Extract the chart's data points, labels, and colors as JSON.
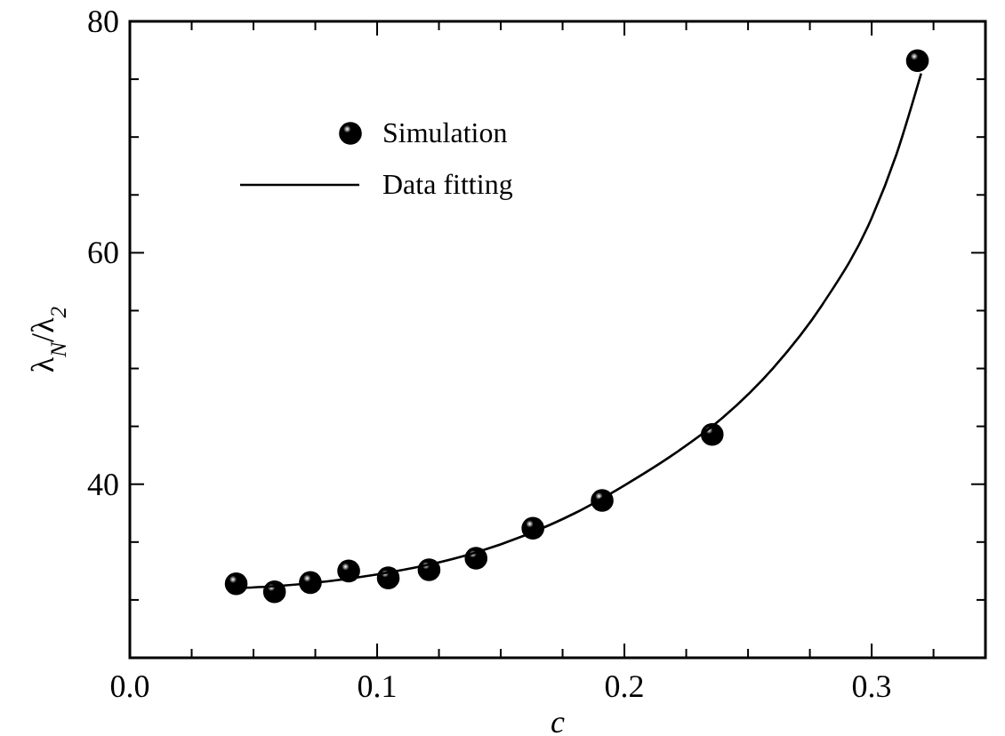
{
  "chart_data": {
    "type": "scatter",
    "xlabel": "c",
    "ylabel": "λ$_{N}$/λ$_{2}$",
    "xlim": [
      0,
      0.346
    ],
    "ylim": [
      25,
      80
    ],
    "xticks": [
      {
        "value": 0,
        "label": "0.0"
      },
      {
        "value": 0.025,
        "label": null
      },
      {
        "value": 0.05,
        "label": null
      },
      {
        "value": 0.075,
        "label": null
      },
      {
        "value": 0.1,
        "label": "0.1"
      },
      {
        "value": 0.125,
        "label": null
      },
      {
        "value": 0.15,
        "label": null
      },
      {
        "value": 0.175,
        "label": null
      },
      {
        "value": 0.2,
        "label": "0.2"
      },
      {
        "value": 0.225,
        "label": null
      },
      {
        "value": 0.25,
        "label": null
      },
      {
        "value": 0.275,
        "label": null
      },
      {
        "value": 0.3,
        "label": "0.3"
      },
      {
        "value": 0.325,
        "label": null
      }
    ],
    "yticks": [
      {
        "value": 25,
        "label": null
      },
      {
        "value": 30,
        "label": null
      },
      {
        "value": 35,
        "label": null
      },
      40,
      {
        "value": 45,
        "label": null
      },
      {
        "value": 50,
        "label": null
      },
      {
        "value": 55,
        "label": null
      },
      60,
      {
        "value": 65,
        "label": null
      },
      {
        "value": 70,
        "label": null
      },
      {
        "value": 75,
        "label": null
      },
      80
    ],
    "legend": "top left",
    "grid": false,
    "series": [
      {
        "name": "Simulation",
        "marker": "circle",
        "color": "#000000",
        "x": [
          0.043,
          0.0585,
          0.073,
          0.0885,
          0.1045,
          0.121,
          0.14,
          0.163,
          0.191,
          0.2355,
          0.3185
        ],
        "values": [
          31.4,
          30.7,
          31.5,
          32.5,
          31.9,
          32.6,
          33.6,
          36.2,
          38.6,
          44.3,
          76.6
        ]
      },
      {
        "name": "Data fitting",
        "type": "line",
        "line_style": "solid",
        "color": "#000000",
        "x": [
          0.04,
          0.06,
          0.08,
          0.1,
          0.12,
          0.14,
          0.16,
          0.18,
          0.2,
          0.22,
          0.24,
          0.26,
          0.28,
          0.3,
          0.31,
          0.32
        ],
        "values": [
          31.0,
          31.2,
          31.6,
          32.2,
          33.0,
          34.1,
          35.6,
          37.5,
          39.9,
          42.6,
          45.8,
          50,
          55.5,
          63,
          68.5,
          75.5
        ]
      }
    ]
  }
}
